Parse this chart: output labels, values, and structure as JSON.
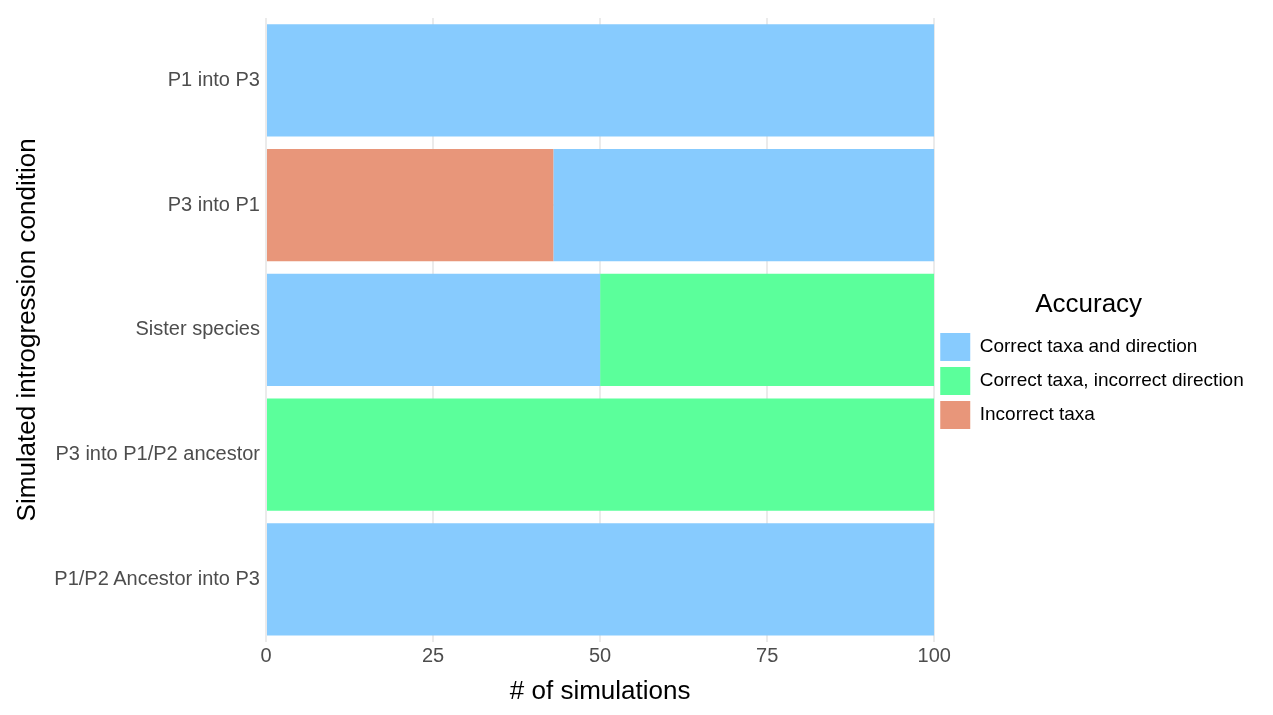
{
  "chart_data": {
    "type": "bar",
    "orientation": "horizontal",
    "stacked": true,
    "xlabel": "# of simulations",
    "ylabel": "Simulated introgression condition",
    "legend_title": "Accuracy",
    "categories": [
      "P1 into P3",
      "P3 into P1",
      "Sister species",
      "P3 into P1/P2 ancestor",
      "P1/P2 Ancestor into P3"
    ],
    "series": [
      {
        "name": "Incorrect taxa",
        "color": "#e8967a",
        "values": [
          0,
          43,
          0,
          0,
          0
        ]
      },
      {
        "name": "Correct taxa and direction",
        "color": "#87cbfe",
        "values": [
          100,
          57,
          50,
          0,
          100
        ]
      },
      {
        "name": "Correct taxa, incorrect direction",
        "color": "#5bff9b",
        "values": [
          0,
          0,
          50,
          100,
          0
        ]
      }
    ],
    "xlim": [
      0,
      100
    ],
    "xticks": [
      0,
      25,
      50,
      75,
      100
    ],
    "grid": true,
    "legend": "right"
  }
}
